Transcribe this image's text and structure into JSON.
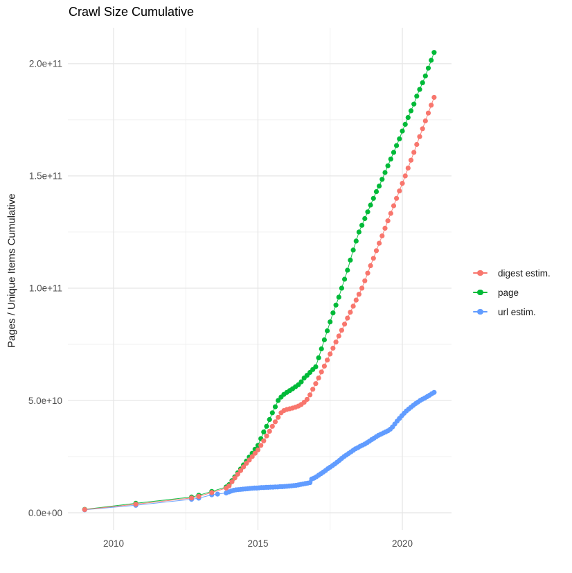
{
  "title": "Crawl Size Cumulative",
  "y_axis_title": "Pages / Unique Items Cumulative",
  "chart_data": {
    "type": "scatter",
    "title": "Crawl Size Cumulative",
    "xlabel": "",
    "ylabel": "Pages / Unique Items Cumulative",
    "grid": true,
    "legend_position": "right",
    "xlim": [
      2008.417,
      2021.703
    ],
    "ylim": [
      -7700000000.0,
      216000000000.0
    ],
    "x_ticks": [
      2010,
      2015,
      2020
    ],
    "x_tick_labels": [
      "2010",
      "2015",
      "2020"
    ],
    "x_minor_ticks": [
      2012.5,
      2017.5
    ],
    "y_ticks": [
      0,
      50000000000.0,
      100000000000.0,
      150000000000.0,
      200000000000.0
    ],
    "y_tick_labels": [
      "0.0e+00",
      "5.0e+10",
      "1.0e+11",
      "1.5e+11",
      "2.0e+11"
    ],
    "y_minor_ticks": [
      25000000000.0,
      75000000000.0,
      125000000000.0,
      175000000000.0
    ],
    "colors": {
      "digest_estim": "#F8766D",
      "page": "#00BA38",
      "url_estim": "#619CFF"
    },
    "series": [
      {
        "name": "digest estim.",
        "color": "#F8766D",
        "points": [
          [
            2009,
            1400000000.0
          ],
          [
            2010.77,
            3800000000.0
          ],
          [
            2012.7,
            6600000000.0
          ],
          [
            2012.95,
            7300000000.0
          ],
          [
            2013.4,
            9000000000.0
          ],
          [
            2013.9,
            11000000000.0
          ],
          [
            2014,
            12000000000.0
          ],
          [
            2014.1,
            13800000000.0
          ],
          [
            2014.2,
            15500000000.0
          ],
          [
            2014.3,
            17200000000.0
          ],
          [
            2014.4,
            18800000000.0
          ],
          [
            2014.5,
            20400000000.0
          ],
          [
            2014.6,
            22000000000.0
          ],
          [
            2014.7,
            23500000000.0
          ],
          [
            2014.8,
            25000000000.0
          ],
          [
            2014.9,
            26500000000.0
          ],
          [
            2015,
            28000000000.0
          ],
          [
            2015.1,
            30000000000.0
          ],
          [
            2015.2,
            32000000000.0
          ],
          [
            2015.3,
            34200000000.0
          ],
          [
            2015.4,
            36300000000.0
          ],
          [
            2015.5,
            38500000000.0
          ],
          [
            2015.6,
            40500000000.0
          ],
          [
            2015.7,
            42500000000.0
          ],
          [
            2015.8,
            44500000000.0
          ],
          [
            2015.9,
            45500000000.0
          ],
          [
            2016,
            46000000000.0
          ],
          [
            2016.1,
            46300000000.0
          ],
          [
            2016.2,
            46600000000.0
          ],
          [
            2016.3,
            47000000000.0
          ],
          [
            2016.4,
            47500000000.0
          ],
          [
            2016.5,
            48200000000.0
          ],
          [
            2016.6,
            49200000000.0
          ],
          [
            2016.7,
            50500000000.0
          ],
          [
            2016.8,
            52500000000.0
          ],
          [
            2016.9,
            55000000000.0
          ],
          [
            2017,
            57500000000.0
          ],
          [
            2017.1,
            60000000000.0
          ],
          [
            2017.2,
            62700000000.0
          ],
          [
            2017.3,
            65300000000.0
          ],
          [
            2017.4,
            68000000000.0
          ],
          [
            2017.5,
            70700000000.0
          ],
          [
            2017.6,
            73300000000.0
          ],
          [
            2017.7,
            76000000000.0
          ],
          [
            2017.8,
            78700000000.0
          ],
          [
            2017.9,
            81300000000.0
          ],
          [
            2018,
            84000000000.0
          ],
          [
            2018.1,
            86700000000.0
          ],
          [
            2018.2,
            89300000000.0
          ],
          [
            2018.3,
            92000000000.0
          ],
          [
            2018.4,
            94700000000.0
          ],
          [
            2018.5,
            97300000000.0
          ],
          [
            2018.6,
            100000000000.0
          ],
          [
            2018.7,
            103300000000.0
          ],
          [
            2018.8,
            106700000000.0
          ],
          [
            2018.9,
            110000000000.0
          ],
          [
            2019,
            113300000000.0
          ],
          [
            2019.1,
            116700000000.0
          ],
          [
            2019.2,
            120000000000.0
          ],
          [
            2019.3,
            123300000000.0
          ],
          [
            2019.4,
            126700000000.0
          ],
          [
            2019.5,
            130000000000.0
          ],
          [
            2019.6,
            133300000000.0
          ],
          [
            2019.7,
            136700000000.0
          ],
          [
            2019.8,
            140000000000.0
          ],
          [
            2019.9,
            143300000000.0
          ],
          [
            2020,
            146700000000.0
          ],
          [
            2020.1,
            150000000000.0
          ],
          [
            2020.2,
            153500000000.0
          ],
          [
            2020.3,
            157000000000.0
          ],
          [
            2020.4,
            160500000000.0
          ],
          [
            2020.5,
            164000000000.0
          ],
          [
            2020.6,
            167500000000.0
          ],
          [
            2020.7,
            171000000000.0
          ],
          [
            2020.8,
            174500000000.0
          ],
          [
            2020.9,
            178000000000.0
          ],
          [
            2021,
            181500000000.0
          ],
          [
            2021.1,
            185000000000.0
          ]
        ]
      },
      {
        "name": "page",
        "color": "#00BA38",
        "points": [
          [
            2009,
            1500000000.0
          ],
          [
            2010.77,
            4200000000.0
          ],
          [
            2012.7,
            7000000000.0
          ],
          [
            2012.95,
            7800000000.0
          ],
          [
            2013.4,
            9500000000.0
          ],
          [
            2013.9,
            11500000000.0
          ],
          [
            2014,
            12500000000.0
          ],
          [
            2014.1,
            14300000000.0
          ],
          [
            2014.2,
            16000000000.0
          ],
          [
            2014.3,
            17800000000.0
          ],
          [
            2014.4,
            19500000000.0
          ],
          [
            2014.5,
            21300000000.0
          ],
          [
            2014.6,
            23000000000.0
          ],
          [
            2014.7,
            24800000000.0
          ],
          [
            2014.8,
            26500000000.0
          ],
          [
            2014.9,
            28300000000.0
          ],
          [
            2015,
            30000000000.0
          ],
          [
            2015.1,
            33000000000.0
          ],
          [
            2015.2,
            36000000000.0
          ],
          [
            2015.3,
            38500000000.0
          ],
          [
            2015.4,
            41500000000.0
          ],
          [
            2015.5,
            44500000000.0
          ],
          [
            2015.6,
            47200000000.0
          ],
          [
            2015.7,
            50000000000.0
          ],
          [
            2015.8,
            51500000000.0
          ],
          [
            2015.9,
            52700000000.0
          ],
          [
            2016,
            53600000000.0
          ],
          [
            2016.1,
            54400000000.0
          ],
          [
            2016.2,
            55200000000.0
          ],
          [
            2016.3,
            56100000000.0
          ],
          [
            2016.4,
            57000000000.0
          ],
          [
            2016.5,
            58300000000.0
          ],
          [
            2016.6,
            60000000000.0
          ],
          [
            2016.7,
            61200000000.0
          ],
          [
            2016.8,
            62500000000.0
          ],
          [
            2016.9,
            63800000000.0
          ],
          [
            2017,
            65000000000.0
          ],
          [
            2017.1,
            69000000000.0
          ],
          [
            2017.2,
            73000000000.0
          ],
          [
            2017.3,
            77000000000.0
          ],
          [
            2017.4,
            81000000000.0
          ],
          [
            2017.5,
            85000000000.0
          ],
          [
            2017.6,
            89000000000.0
          ],
          [
            2017.7,
            92500000000.0
          ],
          [
            2017.8,
            96000000000.0
          ],
          [
            2017.9,
            100000000000.0
          ],
          [
            2018,
            104000000000.0
          ],
          [
            2018.1,
            108000000000.0
          ],
          [
            2018.2,
            112500000000.0
          ],
          [
            2018.3,
            117000000000.0
          ],
          [
            2018.4,
            121000000000.0
          ],
          [
            2018.5,
            125000000000.0
          ],
          [
            2018.6,
            128000000000.0
          ],
          [
            2018.7,
            131000000000.0
          ],
          [
            2018.8,
            134000000000.0
          ],
          [
            2018.9,
            137000000000.0
          ],
          [
            2019,
            140000000000.0
          ],
          [
            2019.1,
            143000000000.0
          ],
          [
            2019.2,
            145500000000.0
          ],
          [
            2019.3,
            148500000000.0
          ],
          [
            2019.4,
            151500000000.0
          ],
          [
            2019.5,
            154500000000.0
          ],
          [
            2019.6,
            157500000000.0
          ],
          [
            2019.7,
            160500000000.0
          ],
          [
            2019.8,
            163500000000.0
          ],
          [
            2019.9,
            166500000000.0
          ],
          [
            2020,
            170000000000.0
          ],
          [
            2020.1,
            173000000000.0
          ],
          [
            2020.2,
            176000000000.0
          ],
          [
            2020.3,
            179000000000.0
          ],
          [
            2020.4,
            182000000000.0
          ],
          [
            2020.5,
            185500000000.0
          ],
          [
            2020.6,
            188500000000.0
          ],
          [
            2020.7,
            191500000000.0
          ],
          [
            2020.8,
            194500000000.0
          ],
          [
            2020.9,
            198000000000.0
          ],
          [
            2021,
            201500000000.0
          ],
          [
            2021.1,
            205000000000.0
          ]
        ]
      },
      {
        "name": "url estim.",
        "color": "#619CFF",
        "points": [
          [
            2009,
            1300000000.0
          ],
          [
            2010.77,
            3300000000.0
          ],
          [
            2012.7,
            6000000000.0
          ],
          [
            2012.95,
            6500000000.0
          ],
          [
            2013.4,
            8000000000.0
          ],
          [
            2013.6,
            8300000000.0
          ],
          [
            2013.9,
            8800000000.0
          ],
          [
            2014,
            9300000000.0
          ],
          [
            2014.08,
            9700000000.0
          ],
          [
            2014.16,
            10000000000.0
          ],
          [
            2014.24,
            10200000000.0
          ],
          [
            2014.32,
            10300000000.0
          ],
          [
            2014.4,
            10400000000.0
          ],
          [
            2014.48,
            10500000000.0
          ],
          [
            2014.56,
            10600000000.0
          ],
          [
            2014.64,
            10700000000.0
          ],
          [
            2014.72,
            10800000000.0
          ],
          [
            2014.8,
            10900000000.0
          ],
          [
            2014.88,
            11000000000.0
          ],
          [
            2014.96,
            11000000000.0
          ],
          [
            2015.04,
            11100000000.0
          ],
          [
            2015.12,
            11200000000.0
          ],
          [
            2015.2,
            11200000000.0
          ],
          [
            2015.28,
            11300000000.0
          ],
          [
            2015.36,
            11300000000.0
          ],
          [
            2015.44,
            11400000000.0
          ],
          [
            2015.52,
            11400000000.0
          ],
          [
            2015.6,
            11500000000.0
          ],
          [
            2015.68,
            11500000000.0
          ],
          [
            2015.76,
            11600000000.0
          ],
          [
            2015.84,
            11600000000.0
          ],
          [
            2015.92,
            11700000000.0
          ],
          [
            2016,
            11800000000.0
          ],
          [
            2016.08,
            11900000000.0
          ],
          [
            2016.16,
            12000000000.0
          ],
          [
            2016.24,
            12100000000.0
          ],
          [
            2016.32,
            12200000000.0
          ],
          [
            2016.4,
            12400000000.0
          ],
          [
            2016.48,
            12600000000.0
          ],
          [
            2016.56,
            12800000000.0
          ],
          [
            2016.64,
            13000000000.0
          ],
          [
            2016.72,
            13200000000.0
          ],
          [
            2016.8,
            13400000000.0
          ],
          [
            2016.86,
            15000000000.0
          ],
          [
            2016.94,
            15400000000.0
          ],
          [
            2017.02,
            16000000000.0
          ],
          [
            2017.1,
            16700000000.0
          ],
          [
            2017.18,
            17400000000.0
          ],
          [
            2017.26,
            18100000000.0
          ],
          [
            2017.34,
            18800000000.0
          ],
          [
            2017.42,
            19600000000.0
          ],
          [
            2017.5,
            20300000000.0
          ],
          [
            2017.58,
            21000000000.0
          ],
          [
            2017.66,
            21700000000.0
          ],
          [
            2017.74,
            22500000000.0
          ],
          [
            2017.82,
            23300000000.0
          ],
          [
            2017.9,
            24200000000.0
          ],
          [
            2017.98,
            25000000000.0
          ],
          [
            2018.06,
            25700000000.0
          ],
          [
            2018.14,
            26400000000.0
          ],
          [
            2018.22,
            27100000000.0
          ],
          [
            2018.3,
            27800000000.0
          ],
          [
            2018.38,
            28500000000.0
          ],
          [
            2018.46,
            29000000000.0
          ],
          [
            2018.54,
            29600000000.0
          ],
          [
            2018.62,
            30100000000.0
          ],
          [
            2018.7,
            30600000000.0
          ],
          [
            2018.78,
            31200000000.0
          ],
          [
            2018.86,
            31900000000.0
          ],
          [
            2018.94,
            32600000000.0
          ],
          [
            2019.02,
            33200000000.0
          ],
          [
            2019.1,
            33900000000.0
          ],
          [
            2019.18,
            34500000000.0
          ],
          [
            2019.26,
            35000000000.0
          ],
          [
            2019.34,
            35500000000.0
          ],
          [
            2019.42,
            36000000000.0
          ],
          [
            2019.5,
            36500000000.0
          ],
          [
            2019.58,
            37200000000.0
          ],
          [
            2019.66,
            38200000000.0
          ],
          [
            2019.74,
            39500000000.0
          ],
          [
            2019.82,
            40800000000.0
          ],
          [
            2019.9,
            42000000000.0
          ],
          [
            2019.98,
            43200000000.0
          ],
          [
            2020.06,
            44300000000.0
          ],
          [
            2020.14,
            45300000000.0
          ],
          [
            2020.22,
            46200000000.0
          ],
          [
            2020.3,
            47000000000.0
          ],
          [
            2020.38,
            47800000000.0
          ],
          [
            2020.46,
            48600000000.0
          ],
          [
            2020.54,
            49300000000.0
          ],
          [
            2020.62,
            50000000000.0
          ],
          [
            2020.7,
            50600000000.0
          ],
          [
            2020.78,
            51100000000.0
          ],
          [
            2020.86,
            51700000000.0
          ],
          [
            2020.94,
            52300000000.0
          ],
          [
            2021.02,
            53000000000.0
          ],
          [
            2021.1,
            53600000000.0
          ]
        ]
      }
    ]
  }
}
